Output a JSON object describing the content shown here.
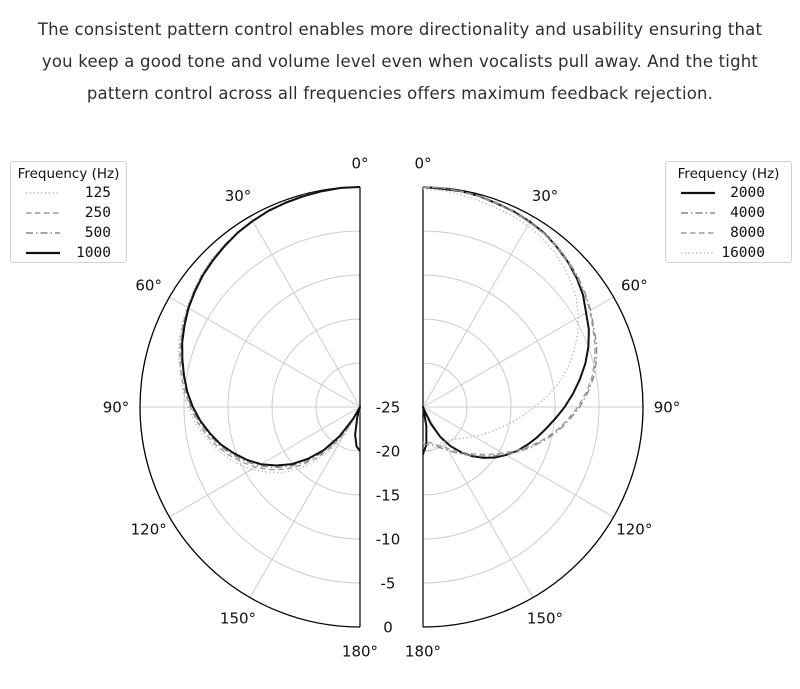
{
  "intro": {
    "lines": [
      "The consistent pattern control enables more directionality and usability ensuring that",
      "you keep a good tone and volume level even when vocalists pull away. And the tight",
      "pattern control across all frequencies offers maximum feedback rejection."
    ]
  },
  "styles": {
    "text_color": "#2e2e2e",
    "grid_color": "#cccccc",
    "axis_color": "#000000",
    "label_color": "#111111"
  },
  "chart_data": [
    {
      "type": "line",
      "subtype": "polar-half",
      "side": "left",
      "legend_title": "Frequency (Hz)",
      "legend_position": "upper left",
      "angle_unit": "deg",
      "angle_ticks_deg": [
        0,
        30,
        60,
        90,
        120,
        150,
        180
      ],
      "angle_tick_labels": [
        "0°",
        "30°",
        "60°",
        "90°",
        "120°",
        "150°",
        "180°"
      ],
      "radial_ticks_db": [
        -25,
        -20,
        -15,
        -10,
        -5,
        0
      ],
      "radial_range_db": [
        -25,
        0
      ],
      "angle_start_deg": 0,
      "angle_step_deg": 5,
      "series": [
        {
          "name": "125",
          "style": "dotted",
          "color": "#b4b4b4",
          "values_db": [
            0,
            0,
            -0.1,
            -0.1,
            -0.2,
            -0.4,
            -0.5,
            -0.7,
            -1.0,
            -1.2,
            -1.5,
            -1.9,
            -2.3,
            -2.7,
            -3.1,
            -3.7,
            -4.3,
            -4.8,
            -5.4,
            -6.1,
            -6.9,
            -7.8,
            -8.7,
            -9.7,
            -10.8,
            -12.1,
            -13.4,
            -15.0,
            -16.8,
            -18.8,
            -21.2,
            -23.5,
            -25,
            -25,
            -24.6,
            -24.2,
            -24.0
          ]
        },
        {
          "name": "250",
          "style": "dashed",
          "color": "#9b9b9b",
          "values_db": [
            0,
            0,
            -0.1,
            -0.1,
            -0.3,
            -0.4,
            -0.6,
            -0.8,
            -1.0,
            -1.3,
            -1.6,
            -2.0,
            -2.4,
            -2.8,
            -3.3,
            -3.8,
            -4.4,
            -5.0,
            -5.7,
            -6.4,
            -7.2,
            -8.1,
            -9.1,
            -10.2,
            -11.3,
            -12.6,
            -14.0,
            -15.7,
            -17.5,
            -19.6,
            -22.1,
            -24.5,
            -25,
            -25,
            -24.8,
            -24.5,
            -24.3
          ]
        },
        {
          "name": "500",
          "style": "dashdot",
          "color": "#878787",
          "values_db": [
            0,
            0,
            -0.1,
            -0.1,
            -0.3,
            -0.4,
            -0.6,
            -0.8,
            -1.0,
            -1.3,
            -1.6,
            -2.0,
            -2.4,
            -2.9,
            -3.4,
            -4.0,
            -4.6,
            -5.2,
            -5.8,
            -6.6,
            -7.5,
            -8.4,
            -9.4,
            -10.5,
            -11.7,
            -13.0,
            -14.5,
            -16.2,
            -18.1,
            -20.3,
            -22.8,
            -25,
            -25,
            -25,
            -24.9,
            -24.7,
            -24.5
          ]
        },
        {
          "name": "1000",
          "style": "solid",
          "color": "#111111",
          "values_db": [
            0,
            0,
            -0.1,
            -0.2,
            -0.3,
            -0.4,
            -0.6,
            -0.8,
            -1.1,
            -1.4,
            -1.7,
            -2.1,
            -2.5,
            -3.0,
            -3.5,
            -4.1,
            -4.7,
            -5.3,
            -6.0,
            -6.8,
            -7.7,
            -8.6,
            -9.7,
            -10.8,
            -12.0,
            -13.4,
            -14.9,
            -16.7,
            -18.6,
            -20.9,
            -23.5,
            -25,
            -25,
            -23.8,
            -21.8,
            -20.5,
            -20.0
          ]
        }
      ]
    },
    {
      "type": "line",
      "subtype": "polar-half",
      "side": "right",
      "legend_title": "Frequency (Hz)",
      "legend_position": "upper right",
      "angle_unit": "deg",
      "angle_ticks_deg": [
        0,
        30,
        60,
        90,
        120,
        150,
        180
      ],
      "angle_tick_labels": [
        "0°",
        "30°",
        "60°",
        "90°",
        "120°",
        "150°",
        "180°"
      ],
      "radial_ticks_db": [
        -25,
        -20,
        -15,
        -10,
        -5,
        0
      ],
      "radial_range_db": [
        -25,
        0
      ],
      "angle_start_deg": 0,
      "angle_step_deg": 5,
      "series": [
        {
          "name": "2000",
          "style": "solid",
          "color": "#111111",
          "values_db": [
            0,
            -0.1,
            -0.1,
            -0.2,
            -0.4,
            -0.5,
            -0.7,
            -0.9,
            -1.3,
            -1.7,
            -2.2,
            -2.8,
            -3.6,
            -4.2,
            -5.0,
            -5.9,
            -6.9,
            -7.9,
            -8.9,
            -9.9,
            -10.8,
            -11.6,
            -12.4,
            -13.2,
            -14.1,
            -15.0,
            -16.0,
            -17.1,
            -18.3,
            -19.6,
            -21.1,
            -22.9,
            -24.7,
            -25,
            -22.8,
            -20.7,
            -19.6
          ]
        },
        {
          "name": "4000",
          "style": "dashdot",
          "color": "#878787",
          "values_db": [
            0,
            0,
            -0.1,
            -0.2,
            -0.3,
            -0.5,
            -0.7,
            -0.9,
            -1.2,
            -1.6,
            -2.0,
            -2.5,
            -3.0,
            -3.6,
            -4.0,
            -4.6,
            -5.3,
            -6.2,
            -7.2,
            -8.3,
            -9.4,
            -10.6,
            -11.8,
            -13.0,
            -14.2,
            -15.3,
            -16.3,
            -17.2,
            -18.0,
            -18.7,
            -19.3,
            -19.8,
            -20.2,
            -20.5,
            -20.6,
            -20.7,
            -20.8
          ]
        },
        {
          "name": "8000",
          "style": "dashed",
          "color": "#9b9b9b",
          "values_db": [
            0,
            0,
            -0.1,
            -0.2,
            -0.4,
            -0.6,
            -0.8,
            -1.0,
            -1.3,
            -1.7,
            -2.1,
            -2.6,
            -3.1,
            -3.7,
            -4.2,
            -4.8,
            -5.5,
            -6.4,
            -7.4,
            -8.5,
            -9.6,
            -10.8,
            -12.0,
            -13.3,
            -14.5,
            -15.6,
            -16.6,
            -17.5,
            -18.3,
            -19.0,
            -19.6,
            -20.1,
            -20.4,
            -20.7,
            -20.9,
            -21.0,
            -21.0
          ]
        },
        {
          "name": "16000",
          "style": "dotted",
          "color": "#b4b4b4",
          "values_db": [
            -0.2,
            -0.3,
            -0.5,
            -0.7,
            -0.9,
            -1.0,
            -1.2,
            -1.5,
            -1.9,
            -2.4,
            -3.0,
            -3.7,
            -4.6,
            -5.6,
            -6.8,
            -8.0,
            -9.3,
            -10.8,
            -12.3,
            -13.6,
            -14.8,
            -15.9,
            -16.8,
            -17.6,
            -18.3,
            -18.9,
            -19.4,
            -19.8,
            -20.1,
            -20.3,
            -20.4,
            -20.4,
            -20.3,
            -20.1,
            -20.0,
            -19.9,
            -19.8
          ]
        }
      ]
    }
  ]
}
